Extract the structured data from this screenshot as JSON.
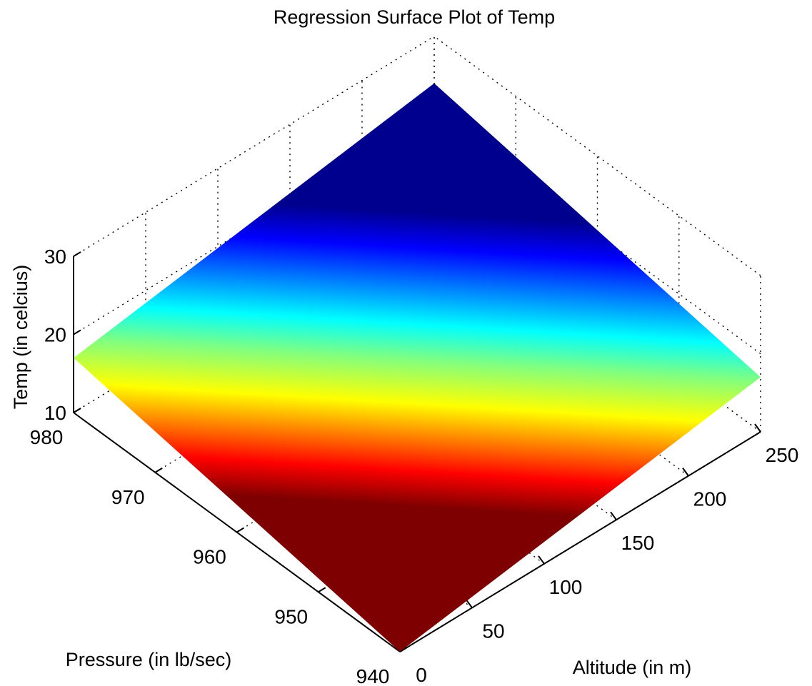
{
  "chart_data": {
    "type": "surface",
    "title": "Regression Surface Plot of Temp",
    "xlabel": "Altitude (in m)",
    "ylabel": "Pressure (in lb/sec)",
    "zlabel": "Temp (in celcius)",
    "xlim": [
      0,
      250
    ],
    "ylim": [
      940,
      980
    ],
    "zlim": [
      10,
      30
    ],
    "xticks": [
      "0",
      "50",
      "100",
      "150",
      "200",
      "250"
    ],
    "yticks": [
      "940",
      "950",
      "960",
      "970",
      "980"
    ],
    "zticks": [
      "10",
      "20",
      "30"
    ],
    "grid": true,
    "colormap": "jet",
    "surface_corners": [
      {
        "altitude": 0,
        "pressure": 940,
        "temp": 10
      },
      {
        "altitude": 250,
        "pressure": 940,
        "temp": 17
      },
      {
        "altitude": 250,
        "pressure": 980,
        "temp": 24
      },
      {
        "altitude": 0,
        "pressure": 980,
        "temp": 17
      }
    ]
  }
}
